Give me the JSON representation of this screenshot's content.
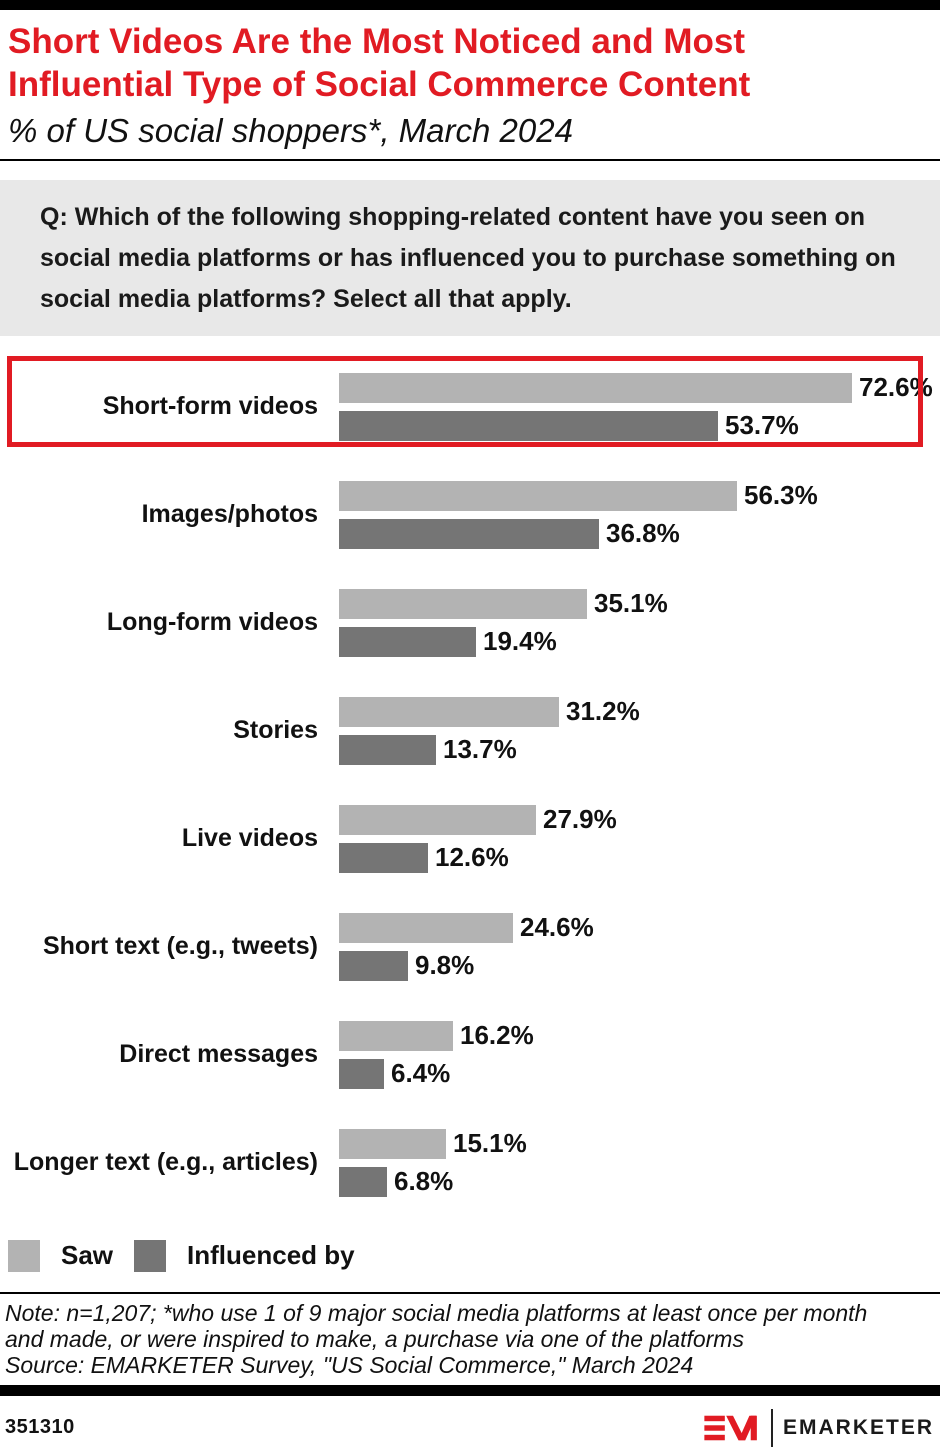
{
  "header": {
    "title": "Short Videos Are the Most Noticed and Most Influential Type of Social Commerce Content",
    "subtitle": "% of US social shoppers*, March 2024"
  },
  "question": {
    "text": "Q: Which of the following shopping-related content have you seen on social media platforms or has influenced you to purchase something on social media platforms? Select all that apply."
  },
  "colors": {
    "accent_red": "#e11b23",
    "saw_gray": "#b3b3b3",
    "influenced_gray": "#757575",
    "question_box_bg": "#e8e8e8",
    "black": "#000000"
  },
  "legend": [
    {
      "label": "Saw",
      "color": "#b3b3b3"
    },
    {
      "label": "Influenced by",
      "color": "#757575"
    }
  ],
  "chart_data": {
    "type": "bar",
    "orientation": "horizontal",
    "title": "Short Videos Are the Most Noticed and Most Influential Type of Social Commerce Content",
    "subtitle": "% of US social shoppers*, March 2024",
    "categories": [
      "Short-form videos",
      "Images/photos",
      "Long-form videos",
      "Stories",
      "Live videos",
      "Short text (e.g., tweets)",
      "Direct messages",
      "Longer text (e.g., articles)"
    ],
    "series": [
      {
        "name": "Saw",
        "color": "#b3b3b3",
        "values": [
          72.6,
          56.3,
          35.1,
          31.2,
          27.9,
          24.6,
          16.2,
          15.1
        ]
      },
      {
        "name": "Influenced by",
        "color": "#757575",
        "values": [
          53.7,
          36.8,
          19.4,
          13.7,
          12.6,
          9.8,
          6.4,
          6.8
        ]
      }
    ],
    "value_suffix": "%",
    "xlim": [
      0,
      80
    ],
    "grid": false,
    "legend_position": "bottom-left",
    "highlighted_category": "Short-form videos",
    "highlight_color": "#e11b23"
  },
  "footer": {
    "note": "Note: n=1,207; *who use 1 of 9 major social media platforms at least once per month and made, or were inspired to make, a purchase via one of the platforms",
    "source": "Source: EMARKETER Survey, \"US Social Commerce,\" March 2024",
    "chart_id": "351310",
    "brand_name": "EMARKETER"
  }
}
